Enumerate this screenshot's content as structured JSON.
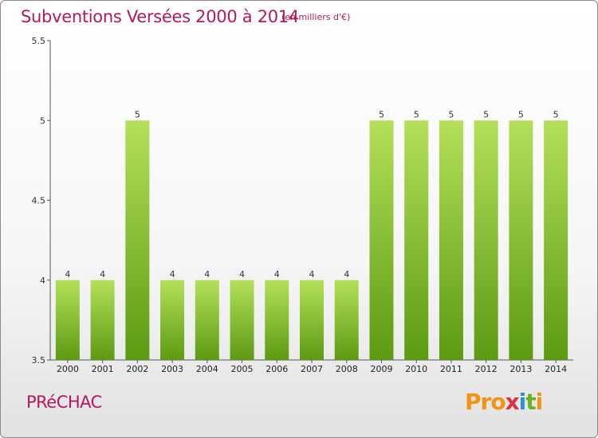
{
  "header": {
    "title": "Subventions Versées 2000 à 2014",
    "unit": "(en milliers d'€)"
  },
  "footer": {
    "commune": "PRéCHAC",
    "logo": "Proxiti"
  },
  "colors": {
    "title": "#b5195a",
    "bar_light": "#b4e05a",
    "bar_dark": "#5c9a12",
    "axis": "#555555"
  },
  "chart_data": {
    "type": "bar",
    "title": "Subventions Versées 2000 à 2014",
    "subtitle": "(en milliers d'€)",
    "xlabel": "",
    "ylabel": "",
    "categories": [
      "2000",
      "2001",
      "2002",
      "2003",
      "2004",
      "2005",
      "2006",
      "2007",
      "2008",
      "2009",
      "2010",
      "2011",
      "2012",
      "2013",
      "2014"
    ],
    "values": [
      4,
      4,
      5,
      4,
      4,
      4,
      4,
      4,
      4,
      5,
      5,
      5,
      5,
      5,
      5
    ],
    "data_labels": [
      "4",
      "4",
      "5",
      "4",
      "4",
      "4",
      "4",
      "4",
      "4",
      "5",
      "5",
      "5",
      "5",
      "5",
      "5"
    ],
    "ylim": [
      3.5,
      5.5
    ],
    "yticks": [
      3.5,
      4,
      4.5,
      5,
      5.5
    ],
    "ytick_labels": [
      "3.5",
      "4",
      "4.5",
      "5",
      "5.5"
    ],
    "grid": false,
    "legend": "none"
  }
}
